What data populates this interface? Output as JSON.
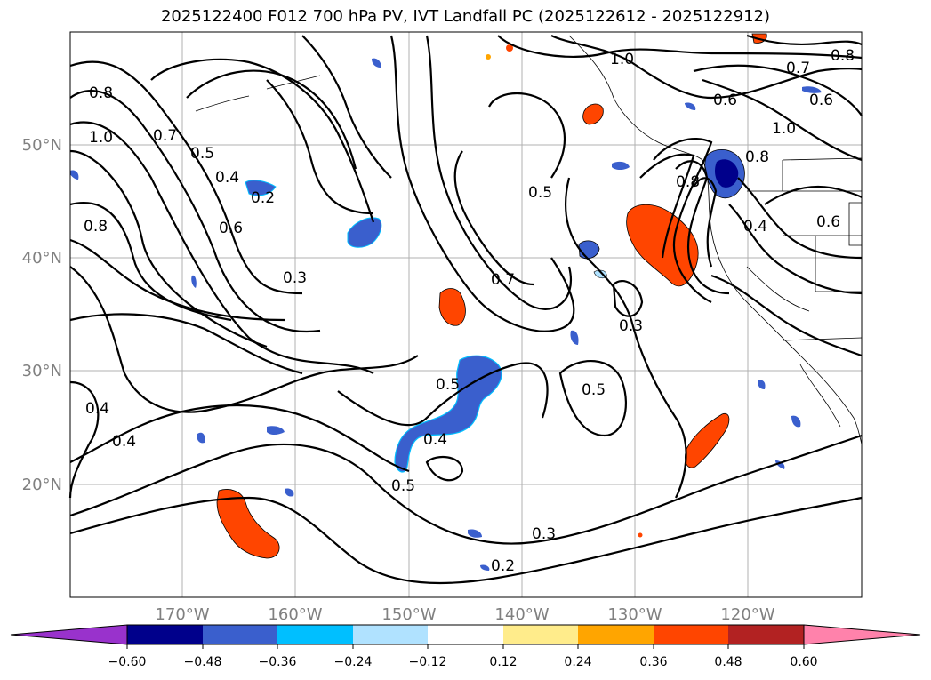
{
  "title": "2025122400 F012 700 hPa PV, IVT Landfall PC (2025122612 - 2025122912)",
  "map": {
    "lat_labels": [
      "50°N",
      "40°N",
      "30°N",
      "20°N"
    ],
    "lon_labels": [
      "170°W",
      "160°W",
      "150°W",
      "140°W",
      "130°W",
      "120°W"
    ],
    "contour_labels": [
      {
        "text": "1.0"
      },
      {
        "text": "0.7"
      },
      {
        "text": "0.8"
      },
      {
        "text": "0.6"
      },
      {
        "text": "0.6"
      },
      {
        "text": "1.0"
      },
      {
        "text": "0.8"
      },
      {
        "text": "0.8"
      },
      {
        "text": "1.0"
      },
      {
        "text": "0.7"
      },
      {
        "text": "0.5"
      },
      {
        "text": "0.4"
      },
      {
        "text": "0.2"
      },
      {
        "text": "0.6"
      },
      {
        "text": "0.8"
      },
      {
        "text": "0.3"
      },
      {
        "text": "0.5"
      },
      {
        "text": "0.7"
      },
      {
        "text": "0.8"
      },
      {
        "text": "0.4"
      },
      {
        "text": "0.6"
      },
      {
        "text": "0.3"
      },
      {
        "text": "0.5"
      },
      {
        "text": "0.5"
      },
      {
        "text": "0.4"
      },
      {
        "text": "0.4"
      },
      {
        "text": "0.4"
      },
      {
        "text": "0.5"
      },
      {
        "text": "0.3"
      },
      {
        "text": "0.2"
      }
    ]
  },
  "colorbar": {
    "ticks": [
      "−0.60",
      "−0.48",
      "−0.36",
      "−0.24",
      "−0.12",
      "0.12",
      "0.24",
      "0.36",
      "0.48",
      "0.60"
    ],
    "colors": [
      "#9932CC",
      "#00008B",
      "#3A5FCD",
      "#00BFFF",
      "#B0E2FF",
      "#FFFFFF",
      "#FFEC8B",
      "#FFA500",
      "#FF4500",
      "#B22222",
      "#FF82AB"
    ]
  }
}
